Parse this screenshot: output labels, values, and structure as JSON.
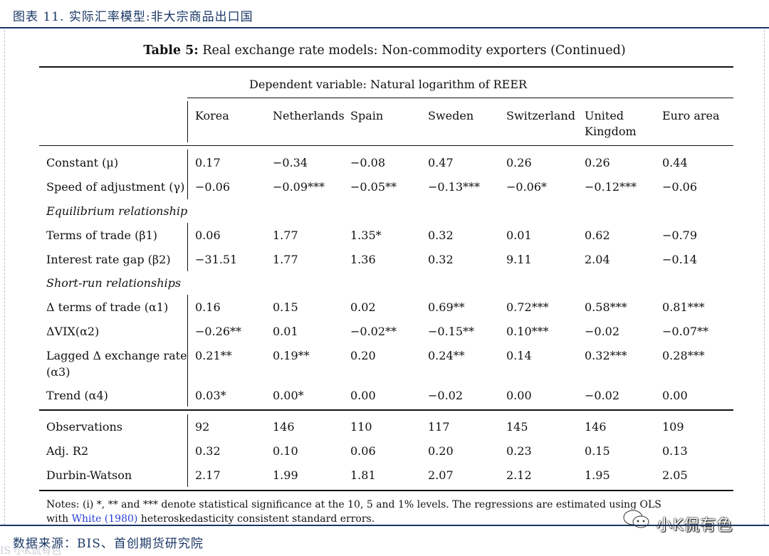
{
  "header": {
    "title": "图表 11. 实际汇率模型:非大宗商品出口国"
  },
  "table": {
    "title_bold": "Table 5:",
    "title_rest": "Real exchange rate models: Non-commodity exporters (Continued)",
    "dependent_variable": "Dependent variable: Natural logarithm of REER",
    "columns": [
      "Korea",
      "Netherlands",
      "Spain",
      "Sweden",
      "Switzerland",
      "United",
      "Euro area"
    ],
    "column_second_line": "Kingdom",
    "rows": [
      {
        "label": "Constant (μ)",
        "values": [
          "0.17",
          "−0.34",
          "−0.08",
          "0.47",
          "0.26",
          "0.26",
          "0.44"
        ]
      },
      {
        "label": "Speed of adjustment (γ)",
        "values": [
          "−0.06",
          "−0.09***",
          "−0.05**",
          "−0.13***",
          "−0.06*",
          "−0.12***",
          "−0.06"
        ]
      },
      {
        "label": "Equilibrium relationship",
        "section": true
      },
      {
        "label": "Terms of trade (β1)",
        "values": [
          "0.06",
          "1.77",
          "1.35*",
          "0.32",
          "0.01",
          "0.62",
          "−0.79"
        ]
      },
      {
        "label": "Interest rate gap (β2)",
        "values": [
          "−31.51",
          "1.77",
          "1.36",
          "0.32",
          "9.11",
          "2.04",
          "−0.14"
        ]
      },
      {
        "label": "Short-run relationships",
        "section": true
      },
      {
        "label": "Δ terms of trade (α1)",
        "values": [
          "0.16",
          "0.15",
          "0.02",
          "0.69**",
          "0.72***",
          "0.58***",
          "0.81***"
        ]
      },
      {
        "label": "ΔVIX(α2)",
        "values": [
          "−0.26**",
          "0.01",
          "−0.02**",
          "−0.15**",
          "0.10***",
          "−0.02",
          "−0.07**"
        ]
      },
      {
        "label": "Lagged Δ exchange rate",
        "label_line2": "(α3)",
        "values": [
          "0.21**",
          "0.19**",
          "0.20",
          "0.24**",
          "0.14",
          "0.32***",
          "0.28***"
        ]
      },
      {
        "label": "Trend (α4)",
        "values": [
          "0.03*",
          "0.00*",
          "0.00",
          "−0.02",
          "0.00",
          "−0.02",
          "0.00"
        ]
      }
    ],
    "stats": [
      {
        "label": "Observations",
        "values": [
          "92",
          "146",
          "110",
          "117",
          "145",
          "146",
          "109"
        ]
      },
      {
        "label": "Adj. R2",
        "values": [
          "0.32",
          "0.10",
          "0.06",
          "0.20",
          "0.23",
          "0.15",
          "0.13"
        ]
      },
      {
        "label": "Durbin-Watson",
        "values": [
          "2.17",
          "1.99",
          "1.81",
          "2.07",
          "2.12",
          "1.95",
          "2.05"
        ]
      }
    ],
    "notes_line1": "Notes: (i) *, ** and *** denote statistical significance at the 10, 5 and 1% levels. The regressions are estimated using OLS",
    "notes_line2_pre": "with",
    "notes_link": "White (1980)",
    "notes_line2_post": "heteroskedasticity consistent standard errors."
  },
  "footer": {
    "source": "数据来源：BIS、首创期货研究院",
    "watermark_left": "IS 小K侃有色"
  },
  "watermark": {
    "text": "小K侃有色"
  }
}
